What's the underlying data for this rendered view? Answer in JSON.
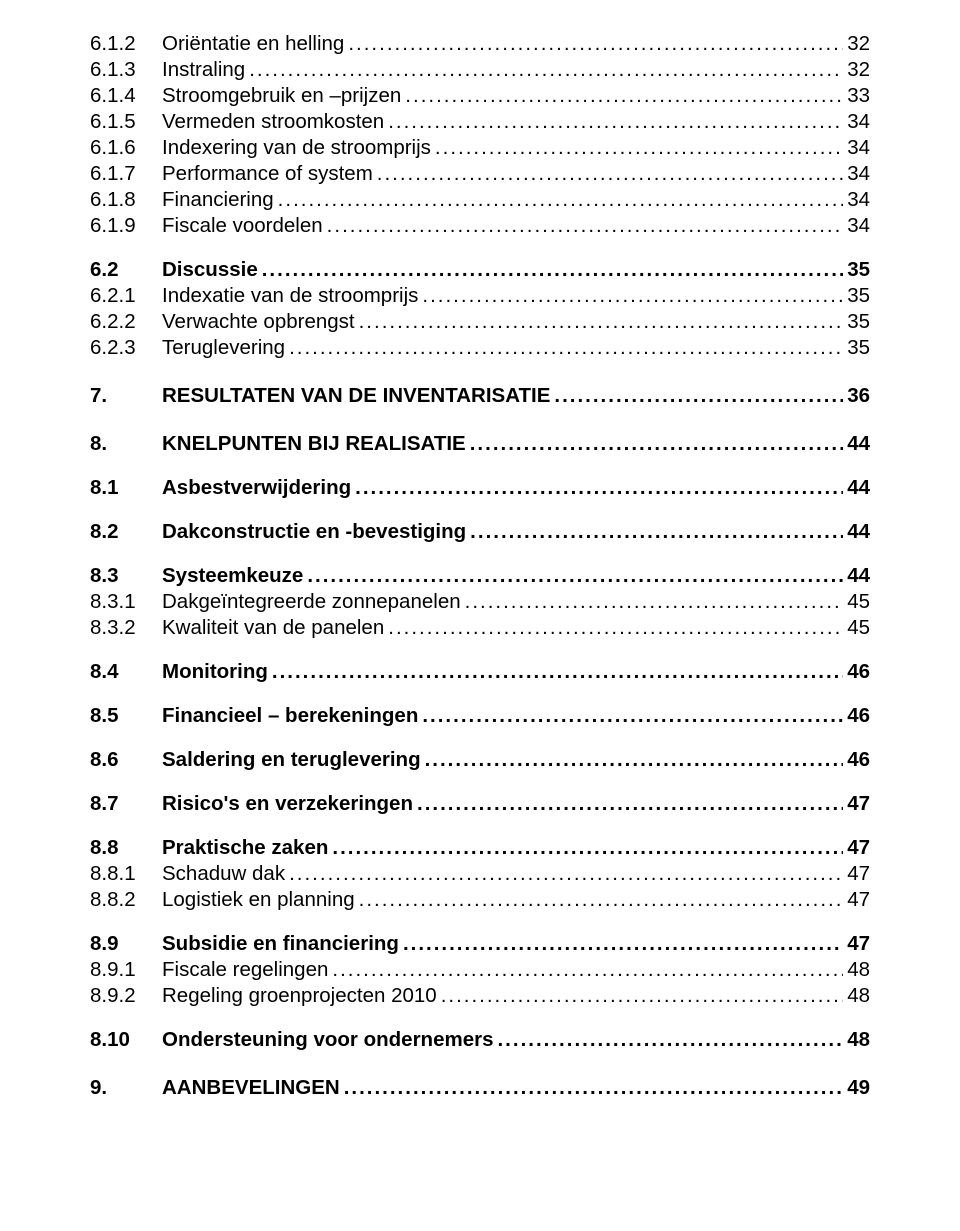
{
  "entries": [
    {
      "level": 3,
      "num": "6.1.2",
      "label": "Oriëntatie en helling",
      "page": "32",
      "first": true
    },
    {
      "level": 3,
      "num": "6.1.3",
      "label": "Instraling",
      "page": "32"
    },
    {
      "level": 3,
      "num": "6.1.4",
      "label": "Stroomgebruik en –prijzen",
      "page": "33"
    },
    {
      "level": 3,
      "num": "6.1.5",
      "label": "Vermeden stroomkosten",
      "page": "34"
    },
    {
      "level": 3,
      "num": "6.1.6",
      "label": "Indexering van de stroomprijs",
      "page": "34"
    },
    {
      "level": 3,
      "num": "6.1.7",
      "label": "Performance of system",
      "page": "34"
    },
    {
      "level": 3,
      "num": "6.1.8",
      "label": "Financiering",
      "page": "34"
    },
    {
      "level": 3,
      "num": "6.1.9",
      "label": "Fiscale voordelen",
      "page": "34"
    },
    {
      "level": 2,
      "num": "6.2",
      "label": "Discussie",
      "page": "35"
    },
    {
      "level": 3,
      "num": "6.2.1",
      "label": "Indexatie van de stroomprijs",
      "page": "35"
    },
    {
      "level": 3,
      "num": "6.2.2",
      "label": "Verwachte opbrengst",
      "page": "35"
    },
    {
      "level": 3,
      "num": "6.2.3",
      "label": "Teruglevering",
      "page": "35"
    },
    {
      "level": 1,
      "num": "7.",
      "label": "RESULTATEN VAN DE INVENTARISATIE",
      "page": "36"
    },
    {
      "level": 1,
      "num": "8.",
      "label": "KNELPUNTEN BIJ REALISATIE",
      "page": "44"
    },
    {
      "level": 2,
      "num": "8.1",
      "label": "Asbestverwijdering",
      "page": "44"
    },
    {
      "level": 2,
      "num": "8.2",
      "label": "Dakconstructie en -bevestiging",
      "page": "44"
    },
    {
      "level": 2,
      "num": "8.3",
      "label": "Systeemkeuze",
      "page": "44"
    },
    {
      "level": 3,
      "num": "8.3.1",
      "label": "Dakgeïntegreerde zonnepanelen",
      "page": "45"
    },
    {
      "level": 3,
      "num": "8.3.2",
      "label": "Kwaliteit van de panelen",
      "page": "45"
    },
    {
      "level": 2,
      "num": "8.4",
      "label": "Monitoring",
      "page": "46"
    },
    {
      "level": 2,
      "num": "8.5",
      "label": "Financieel – berekeningen",
      "page": "46"
    },
    {
      "level": 2,
      "num": "8.6",
      "label": "Saldering en teruglevering",
      "page": "46"
    },
    {
      "level": 2,
      "num": "8.7",
      "label": "Risico's en verzekeringen",
      "page": "47"
    },
    {
      "level": 2,
      "num": "8.8",
      "label": "Praktische zaken",
      "page": "47"
    },
    {
      "level": 3,
      "num": "8.8.1",
      "label": "Schaduw dak",
      "page": "47"
    },
    {
      "level": 3,
      "num": "8.8.2",
      "label": "Logistiek en planning",
      "page": "47"
    },
    {
      "level": 2,
      "num": "8.9",
      "label": "Subsidie en financiering",
      "page": "47"
    },
    {
      "level": 3,
      "num": "8.9.1",
      "label": "Fiscale regelingen",
      "page": "48"
    },
    {
      "level": 3,
      "num": "8.9.2",
      "label": "Regeling groenprojecten 2010",
      "page": "48"
    },
    {
      "level": 2,
      "num": "8.10",
      "label": "Ondersteuning voor ondernemers",
      "page": "48"
    },
    {
      "level": 1,
      "num": "9.",
      "label": "AANBEVELINGEN",
      "page": "49"
    }
  ]
}
